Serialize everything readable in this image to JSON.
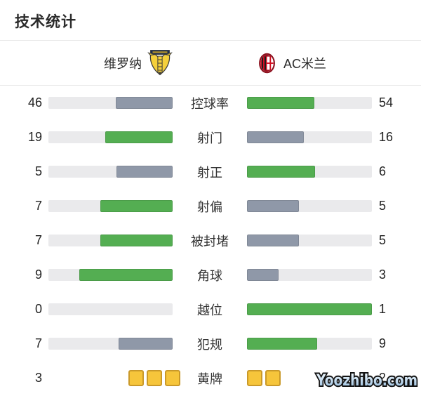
{
  "page": {
    "title": "技术统计",
    "watermark": "Yoozhibo.com"
  },
  "teams": {
    "home": {
      "name": "维罗纳",
      "logo": "hellas-verona-crest"
    },
    "away": {
      "name": "AC米兰",
      "logo": "ac-milan-crest"
    }
  },
  "colors": {
    "green": "#54ae52",
    "gray": "#8f98a8",
    "track": "#eaeaec",
    "card_fill": "#f6c53b",
    "card_border": "#c9992a",
    "divider": "#e8e8e8"
  },
  "stats": [
    {
      "type": "bar",
      "label": "控球率",
      "home": 46,
      "away": 54,
      "home_color": "gray",
      "away_color": "green"
    },
    {
      "type": "bar",
      "label": "射门",
      "home": 19,
      "away": 16,
      "home_color": "green",
      "away_color": "gray"
    },
    {
      "type": "bar",
      "label": "射正",
      "home": 5,
      "away": 6,
      "home_color": "gray",
      "away_color": "green"
    },
    {
      "type": "bar",
      "label": "射偏",
      "home": 7,
      "away": 5,
      "home_color": "green",
      "away_color": "gray"
    },
    {
      "type": "bar",
      "label": "被封堵",
      "home": 7,
      "away": 5,
      "home_color": "green",
      "away_color": "gray"
    },
    {
      "type": "bar",
      "label": "角球",
      "home": 9,
      "away": 3,
      "home_color": "green",
      "away_color": "gray"
    },
    {
      "type": "bar",
      "label": "越位",
      "home": 0,
      "away": 1,
      "home_color": "gray",
      "away_color": "green"
    },
    {
      "type": "bar",
      "label": "犯规",
      "home": 7,
      "away": 9,
      "home_color": "gray",
      "away_color": "green"
    },
    {
      "type": "cards",
      "label": "黄牌",
      "home": 3,
      "away": 2
    }
  ]
}
